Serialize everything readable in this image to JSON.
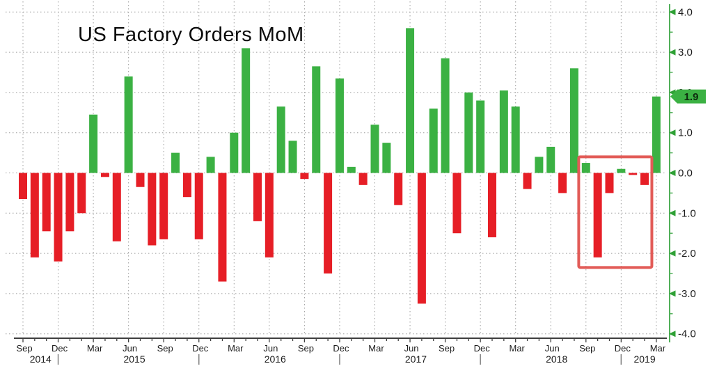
{
  "chart_data": {
    "type": "bar",
    "title": "US Factory Orders MoM",
    "x": [
      "Sep 2014",
      "Oct 2014",
      "Nov 2014",
      "Dec 2014",
      "Jan 2015",
      "Feb 2015",
      "Mar 2015",
      "Apr 2015",
      "May 2015",
      "Jun 2015",
      "Jul 2015",
      "Aug 2015",
      "Sep 2015",
      "Oct 2015",
      "Nov 2015",
      "Dec 2015",
      "Jan 2016",
      "Feb 2016",
      "Mar 2016",
      "Apr 2016",
      "May 2016",
      "Jun 2016",
      "Jul 2016",
      "Aug 2016",
      "Sep 2016",
      "Oct 2016",
      "Nov 2016",
      "Dec 2016",
      "Jan 2017",
      "Feb 2017",
      "Mar 2017",
      "Apr 2017",
      "May 2017",
      "Jun 2017",
      "Jul 2017",
      "Aug 2017",
      "Sep 2017",
      "Oct 2017",
      "Nov 2017",
      "Dec 2017",
      "Jan 2018",
      "Feb 2018",
      "Mar 2018",
      "Apr 2018",
      "May 2018",
      "Jun 2018",
      "Jul 2018",
      "Aug 2018",
      "Sep 2018",
      "Oct 2018",
      "Nov 2018",
      "Dec 2018",
      "Jan 2019",
      "Feb 2019",
      "Mar 2019"
    ],
    "values": [
      -0.65,
      -2.1,
      -1.45,
      -2.2,
      -1.45,
      -1.0,
      1.45,
      -0.1,
      -1.7,
      2.4,
      -0.35,
      -1.8,
      -1.65,
      0.5,
      -0.6,
      -1.65,
      0.4,
      -2.7,
      1.0,
      3.1,
      -1.2,
      -2.1,
      1.65,
      0.8,
      -0.15,
      2.65,
      -2.5,
      2.35,
      0.15,
      -0.3,
      1.2,
      0.75,
      -0.8,
      3.6,
      -3.25,
      1.6,
      2.85,
      -1.5,
      2.0,
      1.8,
      -1.6,
      2.05,
      1.65,
      -0.4,
      0.4,
      0.65,
      -0.5,
      2.6,
      0.25,
      -2.1,
      -0.5,
      0.1,
      -0.05,
      -0.3,
      1.9
    ],
    "ylim": [
      -4,
      4
    ],
    "y_tick_labels": [
      "4.0",
      "3.0",
      "2.0",
      "1.0",
      "0.0",
      "-1.0",
      "-2.0",
      "-3.0",
      "-4.0"
    ],
    "x_tick_month_labels": [
      "Sep",
      "Dec",
      "Mar",
      "Jun"
    ],
    "x_tick_every_months": 3,
    "year_labels": [
      "2014",
      "2015",
      "2016",
      "2017",
      "2018",
      "2019"
    ],
    "grid": "dotted",
    "legend": "none",
    "bar_colors": {
      "positive": "#3bb143",
      "negative": "#e61e26"
    },
    "axis_color": "#52b05a",
    "last_value_badge": {
      "label": "1.9",
      "value": 1.9,
      "bg": "#3bb143",
      "text_color": "#0d2b0d"
    },
    "highlight_box": {
      "from": "Sep 2018",
      "to": "Feb 2019",
      "value_top": 0.4,
      "value_bottom": -2.35,
      "color": "#e25b57"
    }
  }
}
